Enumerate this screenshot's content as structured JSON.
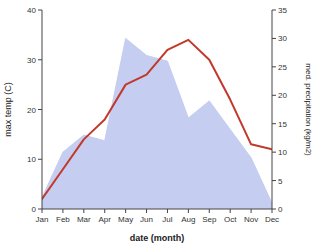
{
  "chart_data": {
    "type": "line",
    "categories": [
      "Jan",
      "Feb",
      "Mar",
      "Apr",
      "May",
      "Jun",
      "Jul",
      "Aug",
      "Sep",
      "Oct",
      "Nov",
      "Dec"
    ],
    "xlabel": "date (month)",
    "ylabel": "max temp (C)",
    "y2label": "med. precipitation (kg/m2)",
    "series": [
      {
        "type": "line",
        "color": "#c0392b",
        "values": [
          2,
          8,
          14,
          18,
          25,
          27,
          32,
          34,
          30,
          22,
          13,
          12
        ]
      },
      {
        "type": "area",
        "axis": "y2",
        "color": "#c5cdf0",
        "values": [
          2,
          10,
          13,
          12,
          30,
          27,
          26,
          16,
          19,
          14,
          9,
          1
        ]
      }
    ],
    "ylim": [
      0,
      40
    ],
    "yticks": [
      0,
      10,
      20,
      30,
      40
    ],
    "y2lim": [
      0,
      35
    ],
    "y2ticks": [
      0,
      5,
      10,
      15,
      20,
      25,
      30,
      35
    ],
    "grid": false
  }
}
